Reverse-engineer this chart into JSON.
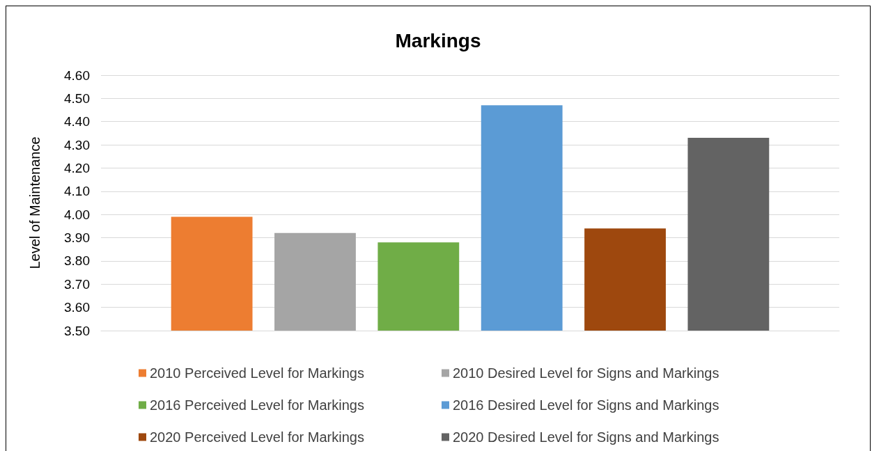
{
  "chart_data": {
    "type": "bar",
    "title": "Markings",
    "ylabel": "Level of Maintenance",
    "categories": [
      null
    ],
    "series": [
      {
        "name": "2010 Perceived Level for Markings",
        "color": "#ed7d31",
        "values": [
          3.99
        ]
      },
      {
        "name": "2010 Desired Level for Signs and Markings",
        "color": "#a5a5a5",
        "values": [
          3.92
        ]
      },
      {
        "name": "2016 Perceived Level for Markings",
        "color": "#70ad47",
        "values": [
          3.88
        ]
      },
      {
        "name": "2016 Desired Level for Signs and Markings",
        "color": "#5b9bd5",
        "values": [
          4.47
        ]
      },
      {
        "name": "2020 Perceived Level for Markings",
        "color": "#9e480e",
        "values": [
          3.94
        ]
      },
      {
        "name": "2020 Desired Level for Signs and Markings",
        "color": "#636363",
        "values": [
          4.33
        ]
      }
    ],
    "ylim": [
      3.5,
      4.6
    ],
    "yticks": [
      {
        "value": 3.5,
        "label": "3.50"
      },
      {
        "value": 3.6,
        "label": "3.60"
      },
      {
        "value": 3.7,
        "label": "3.70"
      },
      {
        "value": 3.8,
        "label": "3.80"
      },
      {
        "value": 3.9,
        "label": "3.90"
      },
      {
        "value": 4.0,
        "label": "4.00"
      },
      {
        "value": 4.1,
        "label": "4.10"
      },
      {
        "value": 4.2,
        "label": "4.20"
      },
      {
        "value": 4.3,
        "label": "4.30"
      },
      {
        "value": 4.4,
        "label": "4.40"
      },
      {
        "value": 4.5,
        "label": "4.50"
      },
      {
        "value": 4.6,
        "label": "4.60"
      }
    ],
    "grid": "y",
    "legend": "bottom"
  }
}
